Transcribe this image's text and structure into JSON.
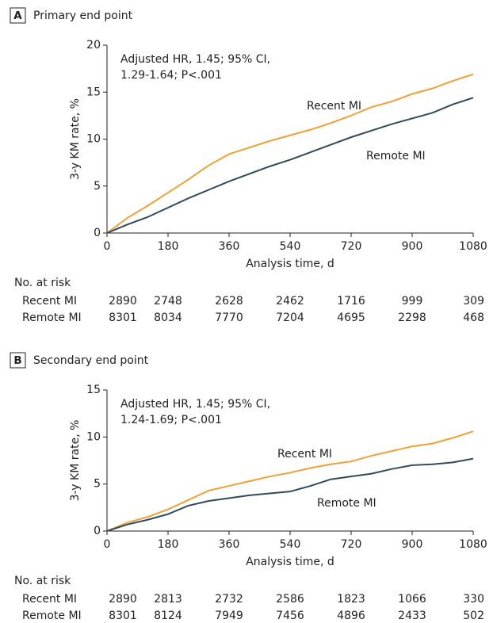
{
  "chart_data": [
    {
      "type": "line",
      "panel": "A",
      "title": "Primary end point",
      "annotation": [
        "Adjusted HR, 1.45; 95% CI,",
        "1.29-1.64; P<.001"
      ],
      "xlabel": "Analysis time, d",
      "ylabel": "3-y KM rate, %",
      "xlim": [
        0,
        1080
      ],
      "xticks": [
        0,
        180,
        360,
        540,
        720,
        900,
        1080
      ],
      "ylim": [
        0,
        20
      ],
      "yticks": [
        0,
        5,
        10,
        15,
        20
      ],
      "x": [
        0,
        60,
        120,
        180,
        240,
        300,
        360,
        420,
        480,
        540,
        600,
        660,
        720,
        780,
        840,
        900,
        960,
        1020,
        1080
      ],
      "series": [
        {
          "name": "Recent MI",
          "color": "#f2a031",
          "values": [
            0,
            1.6,
            2.9,
            4.3,
            5.7,
            7.2,
            8.4,
            9.1,
            9.8,
            10.4,
            11.0,
            11.7,
            12.5,
            13.4,
            14.0,
            14.8,
            15.4,
            16.2,
            16.9
          ]
        },
        {
          "name": "Remote MI",
          "color": "#2f4a5c",
          "values": [
            0,
            0.9,
            1.7,
            2.7,
            3.7,
            4.6,
            5.5,
            6.3,
            7.1,
            7.8,
            8.6,
            9.4,
            10.2,
            10.9,
            11.6,
            12.2,
            12.8,
            13.7,
            14.4
          ]
        }
      ],
      "risk_table": {
        "title": "No. at risk",
        "rows": [
          [
            2890,
            2748,
            2628,
            2462,
            1716,
            999,
            309
          ],
          [
            8301,
            8034,
            7770,
            7204,
            4695,
            2298,
            468
          ]
        ]
      }
    },
    {
      "type": "line",
      "panel": "B",
      "title": "Secondary end point",
      "annotation": [
        "Adjusted HR, 1.45; 95% CI,",
        "1.24-1.69; P<.001"
      ],
      "xlabel": "Analysis time, d",
      "ylabel": "3-y KM rate, %",
      "xlim": [
        0,
        1080
      ],
      "xticks": [
        0,
        180,
        360,
        540,
        720,
        900,
        1080
      ],
      "ylim": [
        0,
        15
      ],
      "yticks": [
        0,
        5,
        10,
        15
      ],
      "x": [
        0,
        60,
        120,
        180,
        240,
        300,
        360,
        420,
        480,
        540,
        600,
        660,
        720,
        780,
        840,
        900,
        960,
        1020,
        1080
      ],
      "series": [
        {
          "name": "Recent MI",
          "color": "#f2a031",
          "values": [
            0,
            0.9,
            1.5,
            2.3,
            3.3,
            4.3,
            4.8,
            5.3,
            5.8,
            6.2,
            6.7,
            7.1,
            7.4,
            8.0,
            8.5,
            9.0,
            9.3,
            9.9,
            10.6
          ]
        },
        {
          "name": "Remote MI",
          "color": "#2f4a5c",
          "values": [
            0,
            0.7,
            1.2,
            1.8,
            2.7,
            3.2,
            3.5,
            3.8,
            4.0,
            4.2,
            4.8,
            5.5,
            5.8,
            6.1,
            6.6,
            7.0,
            7.1,
            7.3,
            7.7
          ]
        }
      ],
      "risk_table": {
        "title": "No. at risk",
        "rows": [
          [
            2890,
            2813,
            2732,
            2586,
            1823,
            1066,
            330
          ],
          [
            8301,
            8124,
            7949,
            7456,
            4896,
            2433,
            502
          ]
        ]
      }
    }
  ]
}
